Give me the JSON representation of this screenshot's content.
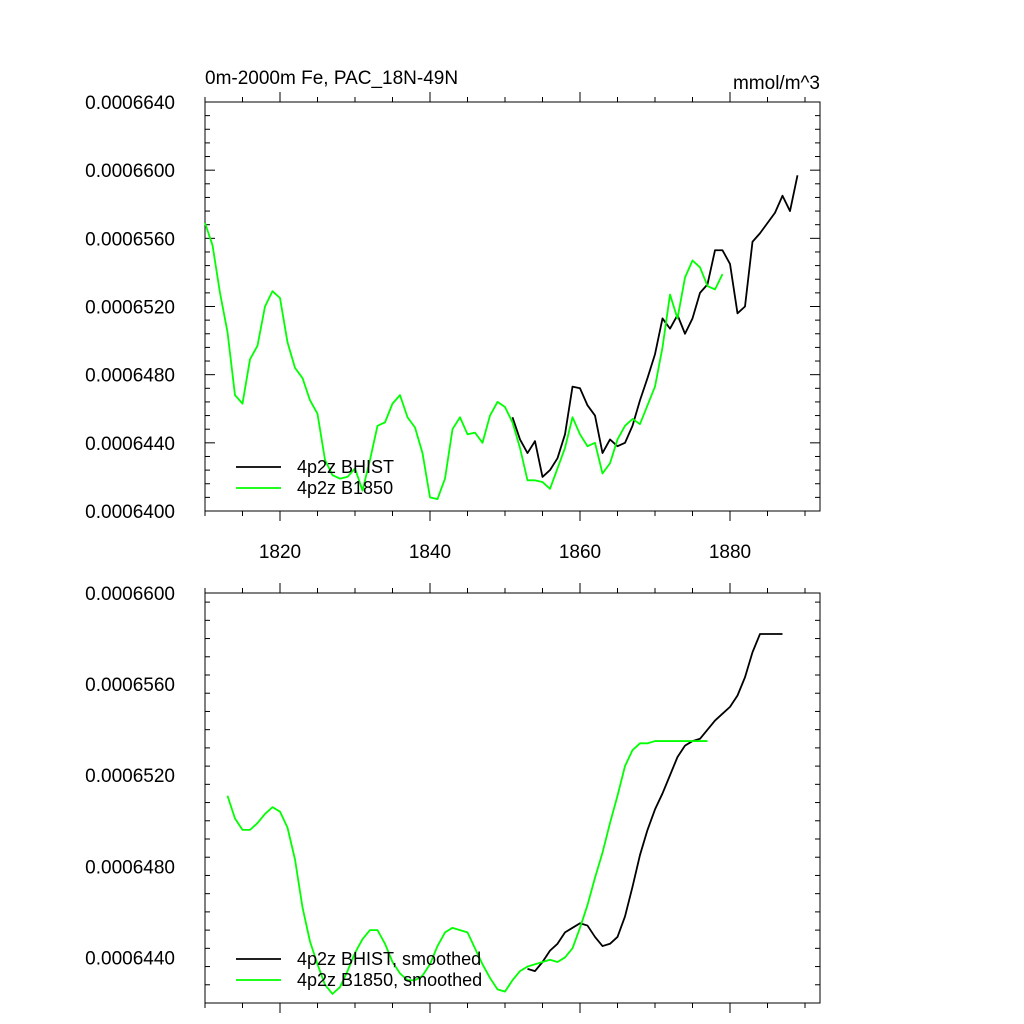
{
  "colors": {
    "bhist": "#000000",
    "b1850": "#00ff00",
    "axis": "#000000",
    "background": "#ffffff"
  },
  "chart_data": [
    {
      "type": "line",
      "title": "0m-2000m Fe, PAC_18N-49N",
      "units": "mmol/m^3",
      "xlabel": "",
      "ylabel": "",
      "xlim": [
        1810,
        1892
      ],
      "ylim": [
        0.00064,
        0.000664
      ],
      "x_ticks": [
        1820,
        1840,
        1860,
        1880
      ],
      "x_tick_labels": [
        "1820",
        "1840",
        "1860",
        "1880"
      ],
      "y_ticks": [
        0.00064,
        0.000644,
        0.000648,
        0.000652,
        0.000656,
        0.00066,
        0.000664
      ],
      "y_tick_labels": [
        "0.0006400",
        "0.0006440",
        "0.0006480",
        "0.0006520",
        "0.0006560",
        "0.0006600",
        "0.0006640"
      ],
      "legend_position": "bottom-left",
      "series": [
        {
          "name": "4p2z BHIST",
          "color": "#000000",
          "x": [
            1851,
            1852,
            1853,
            1854,
            1855,
            1856,
            1857,
            1858,
            1859,
            1860,
            1861,
            1862,
            1863,
            1864,
            1865,
            1866,
            1867,
            1868,
            1869,
            1870,
            1871,
            1872,
            1873,
            1874,
            1875,
            1876,
            1877,
            1878,
            1879,
            1880,
            1881,
            1882,
            1883,
            1884,
            1885,
            1886,
            1887,
            1888,
            1889
          ],
          "y": [
            0.0006455,
            0.0006442,
            0.0006434,
            0.0006441,
            0.000642,
            0.0006424,
            0.0006431,
            0.0006445,
            0.0006473,
            0.0006472,
            0.0006462,
            0.0006456,
            0.0006434,
            0.0006442,
            0.0006438,
            0.000644,
            0.000645,
            0.0006465,
            0.0006478,
            0.0006492,
            0.0006513,
            0.0006507,
            0.0006515,
            0.0006504,
            0.0006513,
            0.0006528,
            0.0006533,
            0.0006553,
            0.0006553,
            0.0006545,
            0.0006516,
            0.000652,
            0.0006558,
            0.0006563,
            0.0006569,
            0.0006575,
            0.0006585,
            0.0006576,
            0.0006597
          ]
        },
        {
          "name": "4p2z B1850",
          "color": "#00ff00",
          "x": [
            1810,
            1811,
            1812,
            1813,
            1814,
            1815,
            1816,
            1817,
            1818,
            1819,
            1820,
            1821,
            1822,
            1823,
            1824,
            1825,
            1826,
            1827,
            1828,
            1829,
            1830,
            1831,
            1832,
            1833,
            1834,
            1835,
            1836,
            1837,
            1838,
            1839,
            1840,
            1841,
            1842,
            1843,
            1844,
            1845,
            1846,
            1847,
            1848,
            1849,
            1850,
            1851,
            1852,
            1853,
            1854,
            1855,
            1856,
            1857,
            1858,
            1859,
            1860,
            1861,
            1862,
            1863,
            1864,
            1865,
            1866,
            1867,
            1868,
            1869,
            1870,
            1871,
            1872,
            1873,
            1874,
            1875,
            1876,
            1877,
            1878,
            1879
          ],
          "y": [
            0.0006569,
            0.0006556,
            0.0006528,
            0.0006505,
            0.0006468,
            0.0006463,
            0.0006489,
            0.0006497,
            0.000652,
            0.0006529,
            0.0006525,
            0.0006499,
            0.0006484,
            0.0006478,
            0.0006465,
            0.0006457,
            0.000643,
            0.0006421,
            0.0006419,
            0.000642,
            0.0006425,
            0.0006412,
            0.000643,
            0.000645,
            0.0006452,
            0.0006463,
            0.0006468,
            0.0006455,
            0.0006449,
            0.0006434,
            0.0006408,
            0.0006407,
            0.0006419,
            0.0006448,
            0.0006455,
            0.0006445,
            0.0006446,
            0.000644,
            0.0006456,
            0.0006464,
            0.0006461,
            0.0006452,
            0.0006437,
            0.0006418,
            0.0006418,
            0.0006417,
            0.0006413,
            0.0006425,
            0.0006437,
            0.0006455,
            0.0006445,
            0.0006438,
            0.000644,
            0.0006422,
            0.0006428,
            0.0006442,
            0.000645,
            0.0006454,
            0.0006451,
            0.0006462,
            0.0006473,
            0.0006496,
            0.0006527,
            0.0006513,
            0.0006537,
            0.0006547,
            0.0006543,
            0.0006532,
            0.000653,
            0.0006539
          ]
        }
      ]
    },
    {
      "type": "line",
      "title": "",
      "xlabel": "",
      "ylabel": "",
      "xlim": [
        1810,
        1892
      ],
      "ylim": [
        0.000642,
        0.00066
      ],
      "x_ticks": [
        1820,
        1840,
        1860,
        1880
      ],
      "x_tick_labels": [],
      "y_ticks": [
        0.000644,
        0.000648,
        0.000652,
        0.000656,
        0.00066
      ],
      "y_tick_labels": [
        "0.0006440",
        "0.0006480",
        "0.0006520",
        "0.0006560",
        "0.0006600"
      ],
      "legend_position": "bottom-left",
      "series": [
        {
          "name": "4p2z BHIST, smoothed",
          "color": "#000000",
          "x": [
            1853,
            1854,
            1855,
            1856,
            1857,
            1858,
            1859,
            1860,
            1861,
            1862,
            1863,
            1864,
            1865,
            1866,
            1867,
            1868,
            1869,
            1870,
            1871,
            1872,
            1873,
            1874,
            1875,
            1876,
            1877,
            1878,
            1879,
            1880,
            1881,
            1882,
            1883,
            1884,
            1885,
            1886,
            1887
          ],
          "y": [
            0.0006435,
            0.0006434,
            0.0006438,
            0.0006443,
            0.0006446,
            0.0006451,
            0.0006453,
            0.0006455,
            0.0006454,
            0.0006449,
            0.0006445,
            0.0006446,
            0.0006449,
            0.0006458,
            0.0006471,
            0.0006485,
            0.0006496,
            0.0006505,
            0.0006512,
            0.000652,
            0.0006528,
            0.0006533,
            0.0006535,
            0.0006536,
            0.000654,
            0.0006544,
            0.0006547,
            0.000655,
            0.0006555,
            0.0006563,
            0.0006574,
            0.0006582,
            0.0006582,
            0.0006582,
            0.0006582
          ]
        },
        {
          "name": "4p2z B1850, smoothed",
          "color": "#00ff00",
          "x": [
            1813,
            1814,
            1815,
            1816,
            1817,
            1818,
            1819,
            1820,
            1821,
            1822,
            1823,
            1824,
            1825,
            1826,
            1827,
            1828,
            1829,
            1830,
            1831,
            1832,
            1833,
            1834,
            1835,
            1836,
            1837,
            1838,
            1839,
            1840,
            1841,
            1842,
            1843,
            1844,
            1845,
            1846,
            1847,
            1848,
            1849,
            1850,
            1851,
            1852,
            1853,
            1854,
            1855,
            1856,
            1857,
            1858,
            1859,
            1860,
            1861,
            1862,
            1863,
            1864,
            1865,
            1866,
            1867,
            1868,
            1869,
            1870,
            1871,
            1872,
            1873,
            1874,
            1875,
            1876,
            1877
          ],
          "y": [
            0.0006511,
            0.0006501,
            0.0006496,
            0.0006496,
            0.0006499,
            0.0006503,
            0.0006506,
            0.0006504,
            0.0006497,
            0.0006483,
            0.0006462,
            0.0006447,
            0.0006437,
            0.0006428,
            0.0006424,
            0.0006427,
            0.0006434,
            0.0006442,
            0.0006448,
            0.0006452,
            0.0006452,
            0.0006446,
            0.0006438,
            0.0006433,
            0.000643,
            0.000643,
            0.0006432,
            0.0006437,
            0.0006445,
            0.0006451,
            0.0006453,
            0.0006452,
            0.0006451,
            0.0006444,
            0.0006437,
            0.0006431,
            0.0006426,
            0.0006425,
            0.000643,
            0.0006434,
            0.0006436,
            0.0006437,
            0.0006438,
            0.0006439,
            0.0006438,
            0.000644,
            0.0006444,
            0.0006453,
            0.0006463,
            0.0006475,
            0.0006486,
            0.0006499,
            0.0006511,
            0.0006524,
            0.0006531,
            0.0006534,
            0.0006534,
            0.0006535,
            0.0006535,
            0.0006535,
            0.0006535,
            0.0006535,
            0.0006535,
            0.0006535,
            0.0006535
          ]
        }
      ]
    }
  ]
}
